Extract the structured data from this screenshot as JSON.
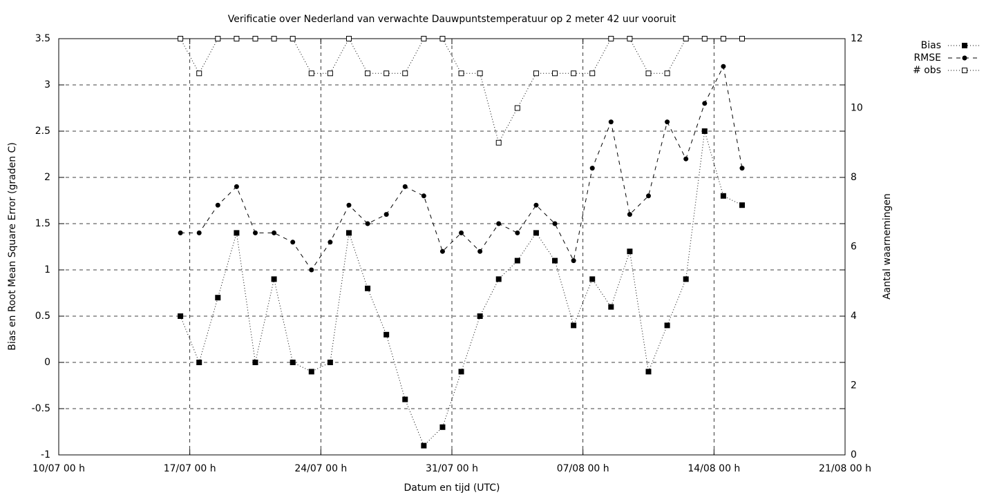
{
  "chart_data": {
    "type": "line",
    "title": "Verificatie over Nederland van verwachte Dauwpuntstemperatuur op 2 meter 42 uur vooruit",
    "xlabel": "Datum en tijd (UTC)",
    "ylabel": "Bias en Root Mean Square Error (graden C)",
    "y2label": "Aantal waarnemingen",
    "x": [
      6.5,
      7.5,
      8.5,
      9.5,
      10.5,
      11.5,
      12.5,
      13.5,
      14.5,
      15.5,
      16.5,
      17.5,
      18.5,
      19.5,
      20.5,
      21.5,
      22.5,
      23.5,
      24.5,
      25.5,
      26.5,
      27.5,
      28.5,
      29.5,
      30.5,
      31.5,
      32.5,
      33.5,
      34.5,
      35.5,
      36.5
    ],
    "series": [
      {
        "name": "Bias",
        "color": "#000000",
        "dash": "dotted",
        "marker": "square",
        "values": [
          0.5,
          0,
          0.7,
          1.4,
          0,
          0.9,
          0,
          -0.1,
          0,
          1.4,
          0.8,
          0.3,
          -0.4,
          -0.9,
          -0.7,
          -0.1,
          0.5,
          0.9,
          1.1,
          1.4,
          1.1,
          0.4,
          0.9,
          0.6,
          1.2,
          -0.1,
          0.4,
          0.9,
          2.5,
          1.8,
          1.7
        ]
      },
      {
        "name": "RMSE",
        "color": "#000000",
        "dash": "dashed",
        "marker": "circle",
        "values": [
          1.4,
          1.4,
          1.7,
          1.9,
          1.4,
          1.4,
          1.3,
          1.0,
          1.3,
          1.7,
          1.5,
          1.6,
          1.9,
          1.8,
          1.2,
          1.4,
          1.2,
          1.5,
          1.4,
          1.7,
          1.5,
          1.1,
          2.1,
          2.6,
          1.6,
          1.8,
          2.6,
          2.2,
          2.8,
          3.2,
          2.1
        ]
      },
      {
        "name": "# obs",
        "color": "#000000",
        "dash": "dotted",
        "marker": "open-square",
        "axis": "y2",
        "values": [
          12,
          11,
          12,
          12,
          12,
          12,
          12,
          11,
          11,
          12,
          11,
          11,
          11,
          12,
          12,
          11,
          11,
          9,
          10,
          11,
          11,
          11,
          11,
          12,
          12,
          11,
          11,
          12,
          12,
          12,
          12
        ]
      }
    ],
    "xlim": [
      0,
      42
    ],
    "xticks": [
      {
        "value": 0,
        "label": "10/07 00 h"
      },
      {
        "value": 7,
        "label": "17/07 00 h"
      },
      {
        "value": 14,
        "label": "24/07 00 h"
      },
      {
        "value": 21,
        "label": "31/07 00 h"
      },
      {
        "value": 28,
        "label": "07/08 00 h"
      },
      {
        "value": 35,
        "label": "14/08 00 h"
      },
      {
        "value": 42,
        "label": "21/08 00 h"
      }
    ],
    "ylim": [
      -1,
      3.5
    ],
    "yticks": [
      -1,
      -0.5,
      0,
      0.5,
      1,
      1.5,
      2,
      2.5,
      3,
      3.5
    ],
    "y2lim": [
      0,
      12
    ],
    "y2ticks": [
      0,
      2,
      4,
      6,
      8,
      10,
      12
    ],
    "grid": true,
    "legend": "outside-top-right"
  }
}
